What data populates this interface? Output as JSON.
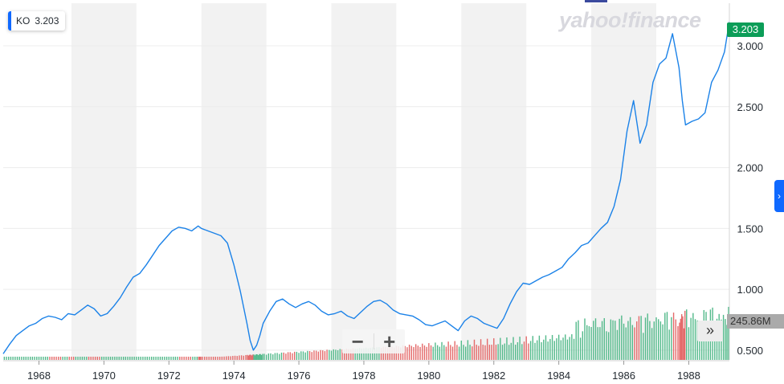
{
  "ticker": {
    "symbol": "KO",
    "value": "3.203"
  },
  "brand": "yahoo!finance",
  "price_tag": "3.203",
  "volume_tag": "245.86M",
  "controls": {
    "zoom_out": "−",
    "zoom_in": "+",
    "expand": "»",
    "side_tab": "›"
  },
  "colors": {
    "line": "#1b82e8",
    "band": "#f2f2f2",
    "grid": "#ececec",
    "vol_up": "#52b98a",
    "vol_down": "#e46a6a",
    "price_tag": "#0c9d58",
    "accent": "#0f69ff"
  },
  "chart_data": {
    "type": "line",
    "x_tick_labels": [
      "1968",
      "1970",
      "1972",
      "1974",
      "1976",
      "1978",
      "1980",
      "1982",
      "1984",
      "1986",
      "1988"
    ],
    "y_tick_labels": [
      "0.500",
      "1.000",
      "1.500",
      "2.000",
      "2.500",
      "3.000"
    ],
    "ylim": [
      0.42,
      3.35
    ],
    "xlim": [
      1966.9,
      1989.25
    ],
    "grid": true,
    "series": [
      {
        "name": "KO",
        "x": [
          1966.9,
          1967.1,
          1967.3,
          1967.5,
          1967.7,
          1967.9,
          1968.1,
          1968.3,
          1968.5,
          1968.7,
          1968.9,
          1969.1,
          1969.3,
          1969.5,
          1969.7,
          1969.9,
          1970.1,
          1970.3,
          1970.5,
          1970.7,
          1970.9,
          1971.1,
          1971.3,
          1971.5,
          1971.7,
          1971.9,
          1972.1,
          1972.3,
          1972.5,
          1972.7,
          1972.9,
          1973.0,
          1973.2,
          1973.4,
          1973.6,
          1973.8,
          1974.0,
          1974.2,
          1974.4,
          1974.5,
          1974.6,
          1974.7,
          1974.8,
          1974.9,
          1975.1,
          1975.3,
          1975.5,
          1975.7,
          1975.9,
          1976.1,
          1976.3,
          1976.5,
          1976.7,
          1976.9,
          1977.1,
          1977.3,
          1977.5,
          1977.7,
          1977.9,
          1978.1,
          1978.3,
          1978.5,
          1978.7,
          1978.9,
          1979.1,
          1979.3,
          1979.5,
          1979.7,
          1979.9,
          1980.1,
          1980.3,
          1980.5,
          1980.7,
          1980.9,
          1981.1,
          1981.3,
          1981.5,
          1981.7,
          1981.9,
          1982.1,
          1982.3,
          1982.5,
          1982.7,
          1982.9,
          1983.1,
          1983.3,
          1983.5,
          1983.7,
          1983.9,
          1984.1,
          1984.3,
          1984.5,
          1984.7,
          1984.9,
          1985.1,
          1985.3,
          1985.5,
          1985.7,
          1985.9,
          1986.1,
          1986.3,
          1986.5,
          1986.7,
          1986.9,
          1987.1,
          1987.3,
          1987.5,
          1987.7,
          1987.8,
          1987.9,
          1988.1,
          1988.3,
          1988.5,
          1988.7,
          1988.9,
          1989.1,
          1989.25
        ],
        "values": [
          0.47,
          0.55,
          0.62,
          0.66,
          0.7,
          0.72,
          0.76,
          0.78,
          0.77,
          0.75,
          0.8,
          0.79,
          0.83,
          0.87,
          0.84,
          0.78,
          0.8,
          0.86,
          0.93,
          1.02,
          1.1,
          1.13,
          1.2,
          1.28,
          1.36,
          1.42,
          1.48,
          1.51,
          1.5,
          1.48,
          1.52,
          1.5,
          1.48,
          1.46,
          1.44,
          1.38,
          1.2,
          0.98,
          0.72,
          0.58,
          0.5,
          0.54,
          0.62,
          0.72,
          0.82,
          0.9,
          0.92,
          0.88,
          0.85,
          0.88,
          0.9,
          0.87,
          0.82,
          0.79,
          0.8,
          0.82,
          0.78,
          0.76,
          0.81,
          0.86,
          0.9,
          0.91,
          0.88,
          0.83,
          0.8,
          0.79,
          0.78,
          0.75,
          0.71,
          0.7,
          0.72,
          0.74,
          0.7,
          0.66,
          0.74,
          0.78,
          0.76,
          0.72,
          0.7,
          0.68,
          0.76,
          0.88,
          0.98,
          1.05,
          1.04,
          1.07,
          1.1,
          1.12,
          1.15,
          1.18,
          1.25,
          1.3,
          1.36,
          1.38,
          1.44,
          1.5,
          1.55,
          1.68,
          1.9,
          2.3,
          2.55,
          2.2,
          2.35,
          2.7,
          2.85,
          2.9,
          3.1,
          2.82,
          2.55,
          2.35,
          2.38,
          2.4,
          2.45,
          2.7,
          2.8,
          2.95,
          3.2
        ]
      }
    ]
  }
}
